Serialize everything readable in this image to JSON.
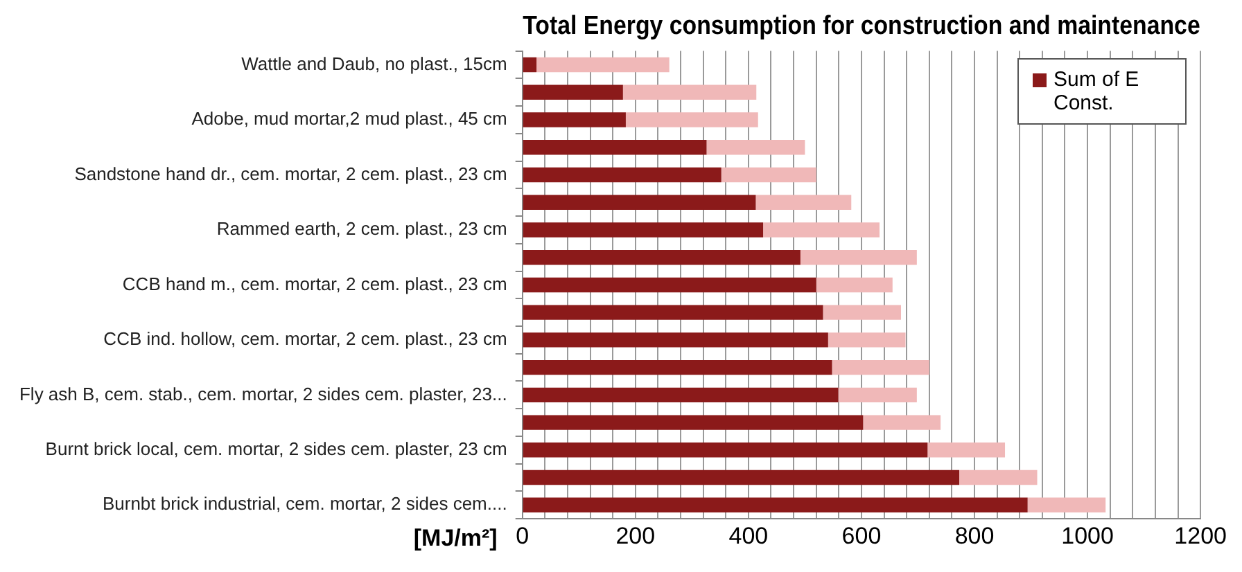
{
  "chart_data": {
    "type": "bar",
    "orientation": "horizontal",
    "stacked": true,
    "title": "Total Energy consumption for construction and maintenance",
    "xlabel": "[MJ/m²]",
    "categories": [
      "Wattle and Daub, no plast., 15cm",
      null,
      "Adobe, mud mortar,2 mud plast., 45 cm",
      null,
      "Sandstone hand dr., cem. mortar, 2 cem. plast., 23 cm",
      null,
      "Rammed earth, 2 cem. plast., 23 cm",
      null,
      "CCB hand m., cem. mortar, 2 cem. plast., 23 cm",
      null,
      "CCB ind. hollow, cem. mortar, 2 cem. plast., 23 cm",
      null,
      "Fly ash B, cem. stab., cem. mortar, 2 sides cem. plaster, 23...",
      null,
      "Burnt brick local, cem. mortar, 2 sides cem. plaster, 23 cm",
      null,
      "Burnbt brick industrial, cem. mortar, 2 sides cem...."
    ],
    "series": [
      {
        "name": "Sum of E Const.",
        "color": "#8b1a1a",
        "values": [
          25,
          178,
          183,
          326,
          352,
          413,
          426,
          492,
          520,
          532,
          541,
          548,
          559,
          603,
          717,
          773,
          894
        ]
      },
      {
        "color": "#f0b8b8",
        "values": [
          235,
          236,
          234,
          174,
          168,
          169,
          206,
          206,
          135,
          138,
          137,
          172,
          139,
          137,
          137,
          138,
          138
        ]
      }
    ],
    "xlim": [
      0,
      1200
    ],
    "xticks": [
      0,
      {
        "value": 40,
        "label": null
      },
      {
        "value": 80,
        "label": null
      },
      {
        "value": 120,
        "label": null
      },
      {
        "value": 160,
        "label": null
      },
      200,
      {
        "value": 240,
        "label": null
      },
      {
        "value": 280,
        "label": null
      },
      {
        "value": 320,
        "label": null
      },
      {
        "value": 360,
        "label": null
      },
      400,
      {
        "value": 440,
        "label": null
      },
      {
        "value": 480,
        "label": null
      },
      {
        "value": 520,
        "label": null
      },
      {
        "value": 560,
        "label": null
      },
      600,
      {
        "value": 640,
        "label": null
      },
      {
        "value": 680,
        "label": null
      },
      {
        "value": 720,
        "label": null
      },
      {
        "value": 760,
        "label": null
      },
      800,
      {
        "value": 840,
        "label": null
      },
      {
        "value": 880,
        "label": null
      },
      {
        "value": 920,
        "label": null
      },
      {
        "value": 960,
        "label": null
      },
      1000,
      {
        "value": 1040,
        "label": null
      },
      {
        "value": 1080,
        "label": null
      },
      {
        "value": 1120,
        "label": null
      },
      {
        "value": 1160,
        "label": null
      },
      1200
    ],
    "grid": "x",
    "legend": "top right"
  }
}
